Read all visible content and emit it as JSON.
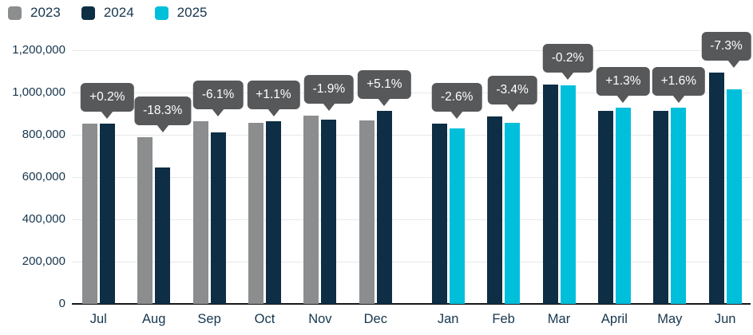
{
  "chart_data": {
    "type": "bar",
    "title": "",
    "legend_position": "top-left",
    "grid": true,
    "ylim": [
      0,
      1200000
    ],
    "ytick_step": 200000,
    "ytick_labels": [
      "0",
      "200,000",
      "400,000",
      "600,000",
      "800,000",
      "1,000,000",
      "1,200,000"
    ],
    "legend": [
      {
        "label": "2023",
        "color": "#8b8d8e"
      },
      {
        "label": "2024",
        "color": "#0d2e44"
      },
      {
        "label": "2025",
        "color": "#00bfda"
      }
    ],
    "categories": [
      "Jul",
      "Aug",
      "Sep",
      "Oct",
      "Nov",
      "Dec",
      "Jan",
      "Feb",
      "Mar",
      "April",
      "May",
      "Jun"
    ],
    "groups": [
      {
        "month": "Jul",
        "change_label": "+0.2%",
        "bars": [
          {
            "year": "2023",
            "value": 851000
          },
          {
            "year": "2024",
            "value": 853000
          }
        ]
      },
      {
        "month": "Aug",
        "change_label": "-18.3%",
        "bars": [
          {
            "year": "2023",
            "value": 789000
          },
          {
            "year": "2024",
            "value": 645000
          }
        ]
      },
      {
        "month": "Sep",
        "change_label": "-6.1%",
        "bars": [
          {
            "year": "2023",
            "value": 864000
          },
          {
            "year": "2024",
            "value": 811000
          }
        ]
      },
      {
        "month": "Oct",
        "change_label": "+1.1%",
        "bars": [
          {
            "year": "2023",
            "value": 855000
          },
          {
            "year": "2024",
            "value": 864000
          }
        ]
      },
      {
        "month": "Nov",
        "change_label": "-1.9%",
        "bars": [
          {
            "year": "2023",
            "value": 890000
          },
          {
            "year": "2024",
            "value": 873000
          }
        ]
      },
      {
        "month": "Dec",
        "change_label": "+5.1%",
        "bars": [
          {
            "year": "2023",
            "value": 868000
          },
          {
            "year": "2024",
            "value": 912000
          }
        ]
      },
      {
        "month": "Jan",
        "change_label": "-2.6%",
        "bars": [
          {
            "year": "2024",
            "value": 853000
          },
          {
            "year": "2025",
            "value": 831000
          }
        ]
      },
      {
        "month": "Feb",
        "change_label": "-3.4%",
        "bars": [
          {
            "year": "2024",
            "value": 885000
          },
          {
            "year": "2025",
            "value": 855000
          }
        ]
      },
      {
        "month": "Mar",
        "change_label": "-0.2%",
        "bars": [
          {
            "year": "2024",
            "value": 1036000
          },
          {
            "year": "2025",
            "value": 1034000
          }
        ]
      },
      {
        "month": "April",
        "change_label": "+1.3%",
        "bars": [
          {
            "year": "2024",
            "value": 915000
          },
          {
            "year": "2025",
            "value": 927000
          }
        ]
      },
      {
        "month": "May",
        "change_label": "+1.6%",
        "bars": [
          {
            "year": "2024",
            "value": 913000
          },
          {
            "year": "2025",
            "value": 928000
          }
        ]
      },
      {
        "month": "Jun",
        "change_label": "-7.3%",
        "bars": [
          {
            "year": "2024",
            "value": 1094000
          },
          {
            "year": "2025",
            "value": 1014000
          }
        ]
      }
    ]
  },
  "colors": {
    "callout_bg": "#57585a",
    "callout_text": "#ffffff",
    "gridline": "#e7e8e9",
    "axis_line": "#15181c",
    "axis_text": "#16364e",
    "background": "#ffffff"
  }
}
